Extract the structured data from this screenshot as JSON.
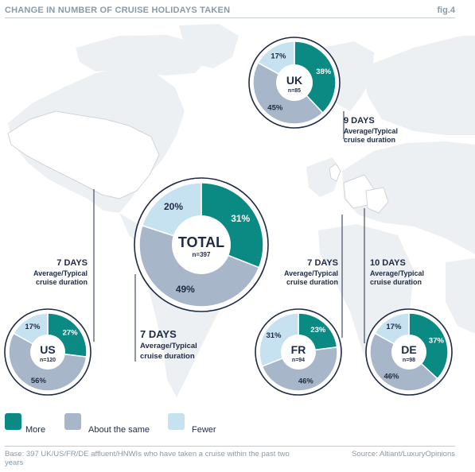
{
  "header": {
    "title": "CHANGE IN NUMBER OF CRUISE HOLIDAYS TAKEN",
    "fig": "fig.4"
  },
  "colors": {
    "more": "#0b8a84",
    "same": "#a7b6c8",
    "fewer": "#c6e2f1",
    "ring": "#1f2a44"
  },
  "chart_data": {
    "type": "pie",
    "series_names": [
      "More",
      "About the same",
      "Fewer"
    ],
    "charts": [
      {
        "label": "TOTAL",
        "n": "n=397",
        "values": [
          31,
          49,
          20
        ],
        "value_labels": [
          "31%",
          "49%",
          "20%"
        ],
        "days": "7 DAYS",
        "duration": [
          "Average/Typical",
          "cruise duration"
        ]
      },
      {
        "label": "UK",
        "n": "n=85",
        "values": [
          38,
          45,
          17
        ],
        "value_labels": [
          "38%",
          "45%",
          "17%"
        ],
        "days": "9 DAYS",
        "duration": [
          "Average/Typical",
          "cruise duration"
        ]
      },
      {
        "label": "US",
        "n": "n=120",
        "values": [
          27,
          56,
          17
        ],
        "value_labels": [
          "27%",
          "56%",
          "17%"
        ],
        "days": "7 DAYS",
        "duration": [
          "Average/Typical",
          "cruise duration"
        ]
      },
      {
        "label": "FR",
        "n": "n=94",
        "values": [
          23,
          46,
          31
        ],
        "value_labels": [
          "23%",
          "46%",
          "31%"
        ],
        "days": "7 DAYS",
        "duration": [
          "Average/Typical",
          "cruise duration"
        ]
      },
      {
        "label": "DE",
        "n": "n=98",
        "values": [
          37,
          46,
          17
        ],
        "value_labels": [
          "37%",
          "46%",
          "17%"
        ],
        "days": "10 DAYS",
        "duration": [
          "Average/Typical",
          "cruise duration"
        ]
      }
    ]
  },
  "legend": [
    {
      "label": "More",
      "color_key": "more"
    },
    {
      "label": "About the same",
      "color_key": "same"
    },
    {
      "label": "Fewer",
      "color_key": "fewer"
    }
  ],
  "footer": {
    "base": "Base: 397 UK/US/FR/DE affluent/HNWIs who have taken a cruise within the past two years",
    "source": "Source: Altiant/LuxuryOpinions"
  }
}
